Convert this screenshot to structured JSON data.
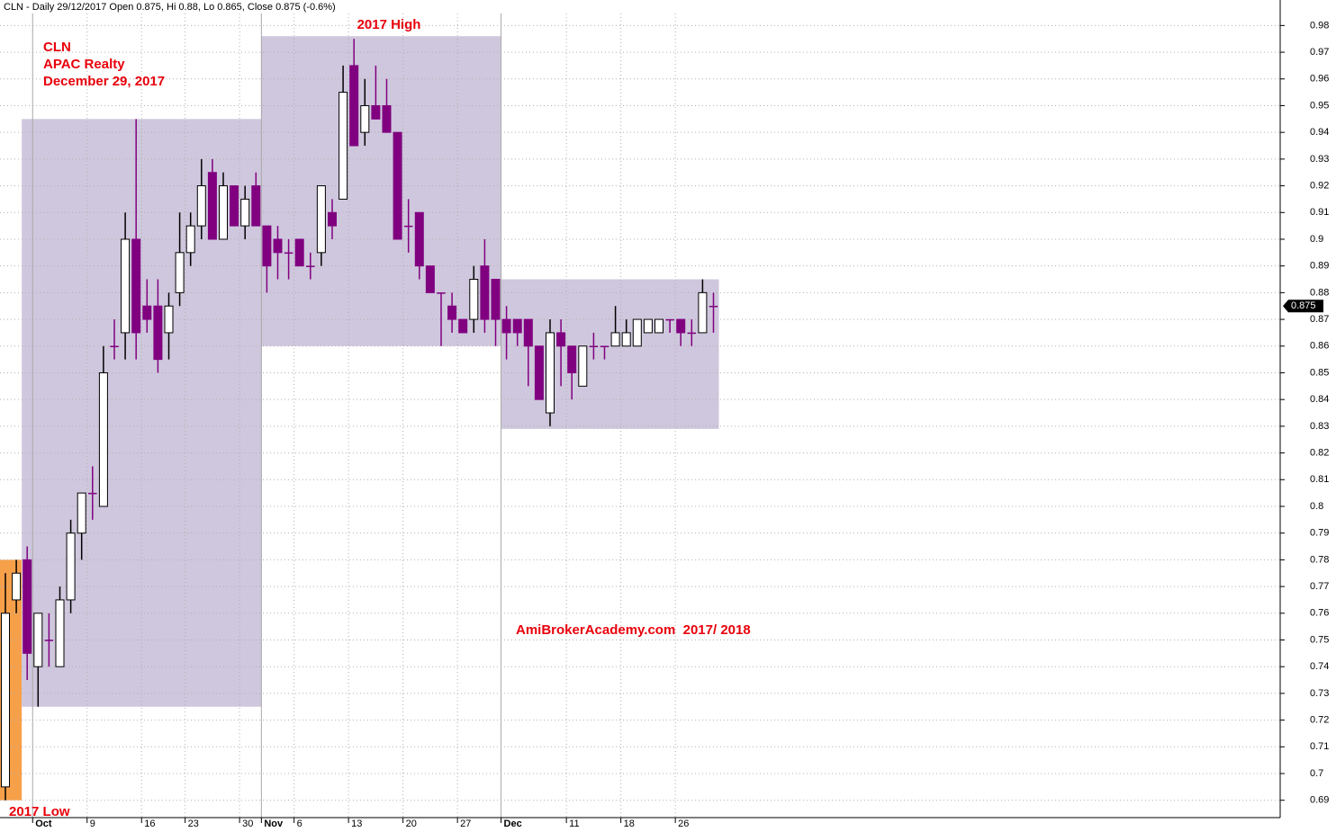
{
  "chart_data": {
    "type": "candlestick",
    "title": "CLN - Daily 29/12/2017 Open 0.875, Hi 0.88, Lo 0.865, Close 0.875 (-0.6%)",
    "labels": [
      "CLN",
      "APAC Realty",
      "December 29, 2017"
    ],
    "high_label": "2017 High",
    "low_label": "2017 Low",
    "watermark": "AmiBrokerAcademy.com  2017/ 2018",
    "last_value": 0.875,
    "categories": [
      null,
      null,
      null,
      "Oct",
      null,
      null,
      null,
      null,
      "9",
      null,
      null,
      null,
      null,
      "16",
      null,
      null,
      null,
      "23",
      null,
      null,
      null,
      null,
      "30",
      null,
      "Nov",
      null,
      null,
      "6",
      null,
      null,
      null,
      null,
      "13",
      null,
      null,
      null,
      null,
      "20",
      null,
      null,
      null,
      null,
      "27",
      null,
      null,
      null,
      "Dec",
      null,
      null,
      null,
      null,
      null,
      "11",
      null,
      null,
      null,
      null,
      "18",
      null,
      null,
      null,
      null,
      "26",
      null,
      null,
      null
    ],
    "open": [
      0.695,
      0.765,
      0.78,
      0.74,
      0.75,
      0.74,
      0.765,
      0.79,
      0.805,
      0.8,
      0.86,
      0.865,
      0.9,
      0.875,
      0.875,
      0.865,
      0.88,
      0.895,
      0.905,
      0.925,
      0.9,
      0.92,
      0.905,
      0.92,
      0.905,
      0.9,
      0.895,
      0.9,
      0.89,
      0.895,
      0.91,
      0.915,
      0.965,
      0.94,
      0.95,
      0.95,
      0.94,
      0.905,
      0.91,
      0.89,
      0.88,
      0.875,
      0.87,
      0.87,
      0.89,
      0.885,
      0.87,
      0.87,
      0.87,
      0.86,
      0.835,
      0.865,
      0.86,
      0.845,
      0.86,
      0.86,
      0.86,
      0.86,
      0.86,
      0.865,
      0.865,
      0.87,
      0.87,
      0.865,
      0.865,
      0.875
    ],
    "high": [
      0.775,
      0.78,
      0.785,
      0.76,
      0.76,
      0.77,
      0.795,
      0.805,
      0.815,
      0.86,
      0.87,
      0.91,
      0.945,
      0.885,
      0.885,
      0.88,
      0.91,
      0.91,
      0.93,
      0.93,
      0.925,
      0.92,
      0.92,
      0.925,
      0.905,
      0.905,
      0.9,
      0.9,
      0.895,
      0.92,
      0.915,
      0.965,
      0.975,
      0.96,
      0.965,
      0.96,
      0.94,
      0.915,
      0.91,
      0.89,
      0.88,
      0.88,
      0.87,
      0.89,
      0.9,
      0.885,
      0.875,
      0.87,
      0.87,
      0.86,
      0.87,
      0.87,
      0.86,
      0.86,
      0.865,
      0.86,
      0.875,
      0.87,
      0.87,
      0.87,
      0.87,
      0.87,
      0.87,
      0.87,
      0.885,
      0.88
    ],
    "low": [
      0.69,
      0.76,
      0.735,
      0.725,
      0.74,
      0.74,
      0.76,
      0.78,
      0.795,
      0.8,
      0.855,
      0.855,
      0.855,
      0.865,
      0.85,
      0.855,
      0.875,
      0.89,
      0.9,
      0.9,
      0.9,
      0.905,
      0.9,
      0.905,
      0.88,
      0.885,
      0.885,
      0.89,
      0.885,
      0.89,
      0.9,
      0.915,
      0.935,
      0.935,
      0.945,
      0.94,
      0.9,
      0.895,
      0.885,
      0.88,
      0.86,
      0.865,
      0.865,
      0.865,
      0.865,
      0.86,
      0.855,
      0.86,
      0.845,
      0.84,
      0.83,
      0.845,
      0.84,
      0.845,
      0.855,
      0.855,
      0.86,
      0.86,
      0.86,
      0.865,
      0.865,
      0.865,
      0.86,
      0.86,
      0.865,
      0.865
    ],
    "close": [
      0.76,
      0.775,
      0.745,
      0.76,
      0.75,
      0.765,
      0.79,
      0.805,
      0.805,
      0.85,
      0.86,
      0.9,
      0.865,
      0.87,
      0.855,
      0.875,
      0.895,
      0.905,
      0.92,
      0.9,
      0.92,
      0.905,
      0.915,
      0.905,
      0.89,
      0.895,
      0.895,
      0.89,
      0.89,
      0.92,
      0.905,
      0.955,
      0.935,
      0.95,
      0.945,
      0.94,
      0.9,
      0.905,
      0.89,
      0.88,
      0.88,
      0.87,
      0.865,
      0.885,
      0.87,
      0.87,
      0.865,
      0.865,
      0.86,
      0.84,
      0.865,
      0.86,
      0.85,
      0.86,
      0.86,
      0.86,
      0.865,
      0.865,
      0.87,
      0.87,
      0.87,
      0.87,
      0.865,
      0.865,
      0.88,
      0.875
    ],
    "up_color": "#ffffff",
    "down_color": "#800080",
    "boxes": [
      {
        "from": 0,
        "to": 1,
        "range": [
          0.69,
          0.78
        ],
        "color": "#f7a04a"
      },
      {
        "from": 2,
        "to": 23,
        "range": [
          0.725,
          0.945
        ],
        "color": "#cfc7dd"
      },
      {
        "from": 24,
        "to": 45,
        "range": [
          0.86,
          0.976
        ],
        "color": "#cfc7dd"
      },
      {
        "from": 46,
        "to": 65,
        "range": [
          0.829,
          0.885
        ],
        "color": "#cfc7dd"
      }
    ],
    "ylim": [
      0.6835,
      0.9845
    ],
    "yticks": [
      0.69,
      0.7,
      0.71,
      0.72,
      0.73,
      0.74,
      0.75,
      0.76,
      0.77,
      0.78,
      0.79,
      0.8,
      0.81,
      0.82,
      0.83,
      0.84,
      0.85,
      0.86,
      0.87,
      0.88,
      0.89,
      0.9,
      0.91,
      0.92,
      0.93,
      0.94,
      0.95,
      0.96,
      0.97,
      0.98
    ],
    "grid": true
  }
}
